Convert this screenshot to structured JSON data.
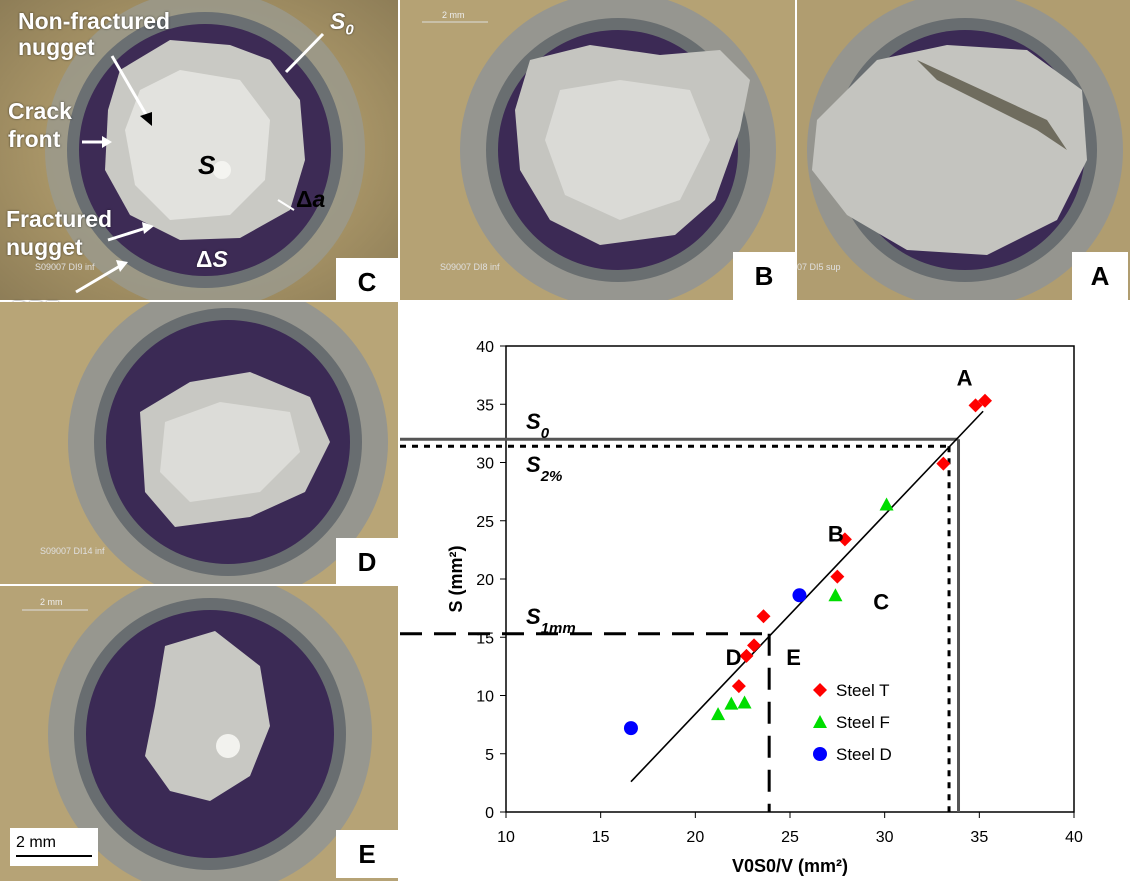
{
  "panels": {
    "C": {
      "letter": "C",
      "label_text": "S09007 DI9 inf"
    },
    "B": {
      "letter": "B",
      "label_text": "S09007 DI8 inf"
    },
    "A": {
      "letter": "A",
      "label_text": "07 DI5 sup"
    },
    "D": {
      "letter": "D",
      "label_text": "S09007 DI14 inf"
    },
    "E": {
      "letter": "E"
    }
  },
  "annotations": {
    "non_fractured": "Non-fractured",
    "nugget_1": "nugget",
    "s0": "S0",
    "crack": "Crack",
    "front": "front",
    "s": "S",
    "delta_a": "Δa",
    "fractured": "Fractured",
    "nugget_2": "nugget",
    "delta_s": "ΔS",
    "dbz": "DBZ"
  },
  "scale_bars": {
    "main": "2 mm",
    "top_b": "2 mm",
    "top_e": "2 mm"
  },
  "chart_data": {
    "type": "scatter",
    "xlabel": "V0S0/V (mm²)",
    "ylabel": "S (mm²)",
    "xlim": [
      10,
      40
    ],
    "ylim": [
      0,
      40
    ],
    "xticks": [
      10,
      15,
      20,
      25,
      30,
      35,
      40
    ],
    "yticks": [
      0,
      5,
      10,
      15,
      20,
      25,
      30,
      35,
      40
    ],
    "series": [
      {
        "name": "Steel T",
        "color": "#ff0000",
        "marker": "diamond",
        "points": [
          [
            22.3,
            10.8
          ],
          [
            22.7,
            13.4
          ],
          [
            23.1,
            14.3
          ],
          [
            23.6,
            16.8
          ],
          [
            27.5,
            20.2
          ],
          [
            27.9,
            23.4
          ],
          [
            33.1,
            29.9
          ],
          [
            34.8,
            34.9
          ],
          [
            35.3,
            35.3
          ]
        ]
      },
      {
        "name": "Steel F",
        "color": "#00dd00",
        "marker": "triangle",
        "points": [
          [
            21.2,
            8.4
          ],
          [
            21.9,
            9.3
          ],
          [
            22.6,
            9.4
          ],
          [
            27.4,
            18.6
          ],
          [
            30.1,
            26.4
          ]
        ]
      },
      {
        "name": "Steel D",
        "color": "#0000ff",
        "marker": "circle",
        "points": [
          [
            16.6,
            7.2
          ],
          [
            25.5,
            18.6
          ]
        ]
      }
    ],
    "fit_line": [
      [
        16.6,
        2.6
      ],
      [
        35.2,
        34.4
      ]
    ],
    "ref_lines": {
      "s0": {
        "label": "S0",
        "y": 32.0,
        "x": 33.9
      },
      "s2": {
        "label": "S2%",
        "y": 31.4,
        "x": 33.4
      },
      "s1mm": {
        "label": "S1mm",
        "y": 15.3,
        "x": 23.9
      }
    },
    "point_labels": [
      {
        "text": "A",
        "x": 33.8,
        "y": 36.6
      },
      {
        "text": "B",
        "x": 27.0,
        "y": 23.2
      },
      {
        "text": "C",
        "x": 29.4,
        "y": 17.4
      },
      {
        "text": "D",
        "x": 21.6,
        "y": 12.6
      },
      {
        "text": "E",
        "x": 24.8,
        "y": 12.6
      }
    ]
  }
}
